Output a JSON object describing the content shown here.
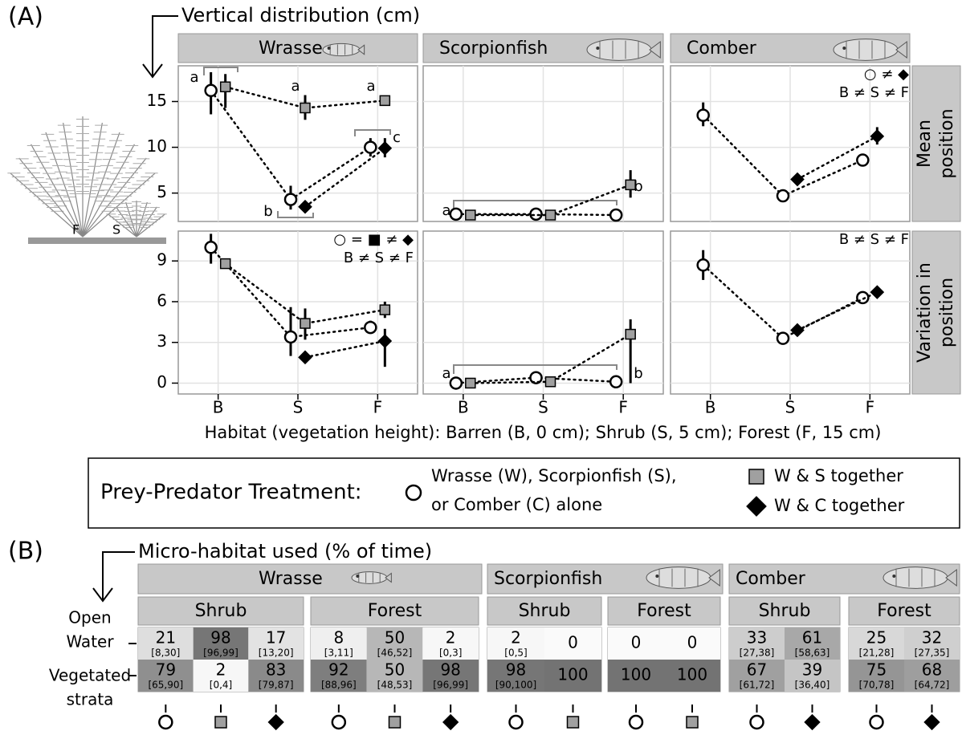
{
  "labels": {
    "panel_a": "(A)",
    "a_title": "Vertical distribution (cm)",
    "x_title": "Habitat (vegetation height): Barren (B, 0 cm); Shrub (S, 5 cm); Forest (F, 15 cm)",
    "panel_b": "(B)",
    "b_title": "Micro-habitat used (% of time)"
  },
  "plant_labels": [
    "F",
    "S"
  ],
  "chart_data": [
    {
      "type": "line",
      "title": "Wrasse",
      "ylim": [
        1.9,
        18.9
      ],
      "yticks": [
        5,
        10,
        15
      ],
      "grid": true,
      "series": [
        {
          "marker": "circle",
          "values": [
            16.2,
            4.3,
            10
          ],
          "lower": [
            13.6,
            3.2,
            9
          ],
          "upper": [
            18.2,
            5.8,
            11
          ]
        },
        {
          "marker": "square",
          "values": [
            16.6,
            14.3,
            15.1
          ],
          "lower": [
            14.3,
            13,
            null
          ],
          "upper": [
            18,
            15.7,
            null
          ]
        },
        {
          "marker": "diamond",
          "values": [
            null,
            3.5,
            9.9
          ],
          "lower": [
            null,
            null,
            8.9
          ],
          "upper": [
            null,
            null,
            11
          ]
        }
      ],
      "annotations": [
        "a",
        "a",
        "a",
        "c",
        "b"
      ]
    },
    {
      "type": "line",
      "title": "Scorpionfish",
      "grid": true,
      "series": [
        {
          "marker": "circle",
          "values": [
            2.7,
            2.7,
            2.6
          ],
          "lower": [
            null,
            null,
            null
          ],
          "upper": [
            null,
            null,
            null
          ]
        },
        {
          "marker": "square",
          "values": [
            2.6,
            2.6,
            5.9
          ],
          "lower": [
            null,
            null,
            4.5
          ],
          "upper": [
            null,
            null,
            7.5
          ]
        }
      ],
      "annotations": [
        "a",
        "b"
      ]
    },
    {
      "type": "line",
      "title": "Comber",
      "row_label": [
        "Mean",
        "position"
      ],
      "grid": true,
      "series": [
        {
          "marker": "circle",
          "values": [
            13.5,
            4.7,
            8.6
          ],
          "lower": [
            12.3,
            null,
            8.2
          ],
          "upper": [
            14.9,
            null,
            9.2
          ]
        },
        {
          "marker": "diamond",
          "values": [
            null,
            6.5,
            11.2
          ],
          "lower": [
            null,
            null,
            10.3
          ],
          "upper": [
            null,
            null,
            12.2
          ]
        }
      ],
      "annotations": [
        "○ ≠ ◆",
        "B ≠ S ≠ F"
      ]
    },
    {
      "type": "line",
      "categories": [
        "B",
        "S",
        "F"
      ],
      "ylim": [
        -0.8,
        11.2
      ],
      "yticks": [
        0,
        3,
        6,
        9
      ],
      "grid": true,
      "series": [
        {
          "marker": "circle",
          "values": [
            10,
            3.4,
            4.1
          ],
          "lower": [
            8.8,
            2,
            3.7
          ],
          "upper": [
            11,
            5.6,
            4.6
          ]
        },
        {
          "marker": "square",
          "values": [
            8.8,
            4.4,
            5.4
          ],
          "lower": [
            null,
            3.2,
            4.8
          ],
          "upper": [
            null,
            5.5,
            6
          ]
        },
        {
          "marker": "diamond",
          "values": [
            null,
            1.9,
            3.1
          ],
          "lower": [
            null,
            null,
            1.2
          ],
          "upper": [
            null,
            null,
            4
          ]
        }
      ],
      "annotations": [
        "○ = ■ ≠ ◆",
        "B ≠ S ≠ F"
      ]
    },
    {
      "type": "line",
      "categories": [
        "B",
        "S",
        "F"
      ],
      "grid": true,
      "series": [
        {
          "marker": "circle",
          "values": [
            0,
            0.4,
            0.1
          ],
          "lower": [
            null,
            null,
            null
          ],
          "upper": [
            null,
            null,
            null
          ]
        },
        {
          "marker": "square",
          "values": [
            0,
            0.1,
            3.6
          ],
          "lower": [
            null,
            null,
            0
          ],
          "upper": [
            null,
            null,
            4.7
          ]
        }
      ],
      "annotations": [
        "a",
        "b"
      ]
    },
    {
      "type": "line",
      "categories": [
        "B",
        "S",
        "F"
      ],
      "row_label": [
        "Variation in",
        "position"
      ],
      "grid": true,
      "series": [
        {
          "marker": "circle",
          "values": [
            8.7,
            3.3,
            6.3
          ],
          "lower": [
            7.6,
            2.9,
            null
          ],
          "upper": [
            9.8,
            3.7,
            null
          ]
        },
        {
          "marker": "diamond",
          "values": [
            null,
            3.9,
            6.7
          ],
          "lower": [
            null,
            null,
            null
          ],
          "upper": [
            null,
            null,
            null
          ]
        }
      ],
      "annotations": [
        "B ≠ S ≠ F"
      ]
    }
  ],
  "legend": {
    "title": "Prey-Predator Treatment:",
    "entries": [
      {
        "marker": "circle",
        "color": "#ffffff",
        "lines": [
          "Wrasse (W), Scorpionfish (S),",
          "or Comber (C) alone"
        ]
      },
      {
        "marker": "square",
        "color": "#a0a0a0",
        "lines": [
          "W & S together"
        ]
      },
      {
        "marker": "diamond",
        "color": "#000000",
        "lines": [
          "W & C together"
        ]
      }
    ]
  },
  "heatmap": {
    "row_labels": [
      [
        "Open",
        "Water"
      ],
      [
        "Vegetated",
        "strata"
      ]
    ],
    "groups": [
      {
        "species": "Wrasse",
        "habitats": [
          {
            "name": "Shrub",
            "treatments": [
              "circle",
              "square",
              "diamond"
            ],
            "values": [
              [
                21,
                98,
                17
              ],
              [
                79,
                2,
                83
              ]
            ],
            "ci": [
              [
                "[8,30]",
                "[96,99]",
                "[13,20]"
              ],
              [
                "[65,90]",
                "[0,4]",
                "[79,87]"
              ]
            ]
          },
          {
            "name": "Forest",
            "treatments": [
              "circle",
              "square",
              "diamond"
            ],
            "values": [
              [
                8,
                50,
                2
              ],
              [
                92,
                50,
                98
              ]
            ],
            "ci": [
              [
                "[3,11]",
                "[46,52]",
                "[0,3]"
              ],
              [
                "[88,96]",
                "[48,53]",
                "[96,99]"
              ]
            ]
          }
        ]
      },
      {
        "species": "Scorpionfish",
        "habitats": [
          {
            "name": "Shrub",
            "treatments": [
              "circle",
              "square"
            ],
            "values": [
              [
                2,
                0
              ],
              [
                98,
                100
              ]
            ],
            "ci": [
              [
                "[0,5]",
                null
              ],
              [
                "[90,100]",
                null
              ]
            ]
          },
          {
            "name": "Forest",
            "treatments": [
              "circle",
              "square"
            ],
            "values": [
              [
                0,
                0
              ],
              [
                100,
                100
              ]
            ],
            "ci": [
              [
                null,
                null
              ],
              [
                null,
                null
              ]
            ]
          }
        ]
      },
      {
        "species": "Comber",
        "habitats": [
          {
            "name": "Shrub",
            "treatments": [
              "circle",
              "diamond"
            ],
            "values": [
              [
                33,
                61
              ],
              [
                67,
                39
              ]
            ],
            "ci": [
              [
                "[27,38]",
                "[58,63]"
              ],
              [
                "[61,72]",
                "[36,40]"
              ]
            ]
          },
          {
            "name": "Forest",
            "treatments": [
              "circle",
              "diamond"
            ],
            "values": [
              [
                25,
                32
              ],
              [
                75,
                68
              ]
            ],
            "ci": [
              [
                "[21,28]",
                "[27,35]"
              ],
              [
                "[70,78]",
                "[64,72]"
              ]
            ]
          }
        ]
      }
    ]
  }
}
